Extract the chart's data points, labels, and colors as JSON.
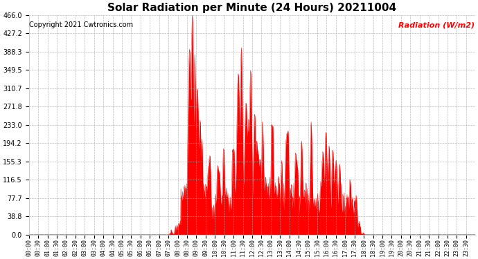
{
  "title": "Solar Radiation per Minute (24 Hours) 20211004",
  "ylabel": "Radiation (W/m2)",
  "copyright": "Copyright 2021 Cwtronics.com",
  "yticks": [
    0.0,
    38.8,
    77.7,
    116.5,
    155.3,
    194.2,
    233.0,
    271.8,
    310.7,
    349.5,
    388.3,
    427.2,
    466.0
  ],
  "ymax": 466.0,
  "ymin": 0.0,
  "fill_color": "#ff0000",
  "line_color": "#ff0000",
  "bg_color": "#ffffff",
  "grid_color": "#aaaaaa",
  "title_color": "#000000",
  "ylabel_color": "#ff0000",
  "copyright_color": "#000000",
  "zero_line_color": "#ff0000",
  "title_fontsize": 11,
  "ylabel_fontsize": 8,
  "copyright_fontsize": 7,
  "ytick_fontsize": 7,
  "xtick_fontsize": 6
}
